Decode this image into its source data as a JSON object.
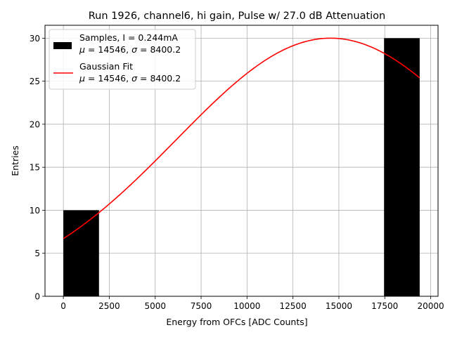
{
  "chart_data": {
    "type": "bar",
    "title": "Run 1926, channel6, hi gain, Pulse w/ 27.0 dB Attenuation",
    "xlabel": "Energy from OFCs [ADC Counts]",
    "ylabel": "Entries",
    "xlim": [
      -1000,
      20400
    ],
    "ylim": [
      0,
      31.5
    ],
    "xticks": [
      0,
      2500,
      5000,
      7500,
      10000,
      12500,
      15000,
      17500,
      20000
    ],
    "yticks": [
      0,
      5,
      10,
      15,
      20,
      25,
      30
    ],
    "grid": true,
    "legend_position": "top-left",
    "histogram": {
      "name": "Samples, I = 0.244mA",
      "stats": "μ = 14546, σ = 8400.2",
      "color": "#000000",
      "bins": [
        {
          "x0": 0,
          "x1": 1940,
          "count": 10
        },
        {
          "x0": 1940,
          "x1": 3880,
          "count": 0
        },
        {
          "x0": 3880,
          "x1": 5820,
          "count": 0
        },
        {
          "x0": 5820,
          "x1": 7760,
          "count": 0
        },
        {
          "x0": 7760,
          "x1": 9700,
          "count": 0
        },
        {
          "x0": 9700,
          "x1": 11640,
          "count": 0
        },
        {
          "x0": 11640,
          "x1": 13580,
          "count": 0
        },
        {
          "x0": 13580,
          "x1": 15520,
          "count": 0
        },
        {
          "x0": 15520,
          "x1": 17460,
          "count": 0
        },
        {
          "x0": 17460,
          "x1": 19400,
          "count": 30
        }
      ]
    },
    "fit": {
      "name": "Gaussian Fit",
      "stats": "μ = 14546, σ = 8400.2",
      "color": "#ff0000",
      "amplitude": 30,
      "mu": 14546,
      "sigma": 8400.2,
      "x_range": [
        0,
        19400
      ]
    }
  }
}
